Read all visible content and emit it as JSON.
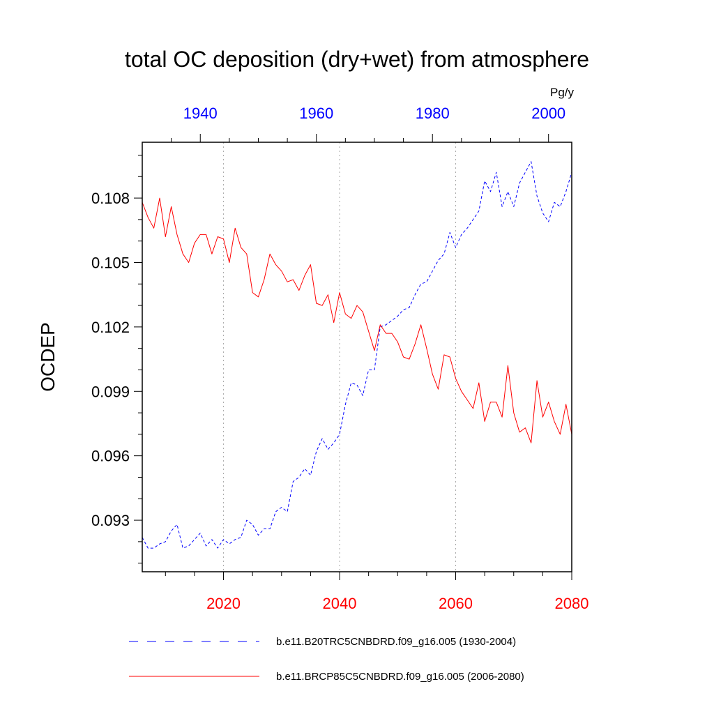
{
  "chart_data": {
    "type": "line",
    "title": "total OC deposition (dry+wet) from atmosphere",
    "ylabel": "OCDEP",
    "units": "Pg/y",
    "ylim": [
      0.0906,
      0.1106
    ],
    "y_ticks": [
      0.093,
      0.096,
      0.099,
      0.102,
      0.105,
      0.108
    ],
    "y_tick_labels": [
      "0.093",
      "0.096",
      "0.099",
      "0.102",
      "0.105",
      "0.108"
    ],
    "top_axis": {
      "range": [
        1930,
        2004
      ],
      "ticks": [
        1940,
        1960,
        1980,
        2000
      ],
      "color": "#0000ff"
    },
    "bottom_axis": {
      "range": [
        2006,
        2080
      ],
      "ticks": [
        2020,
        2040,
        2060,
        2080
      ],
      "color": "#ff0000"
    },
    "grid": "vertical dotted at bottom-axis ticks",
    "series": [
      {
        "name": "b.e11.B20TRC5CNBDRD.f09_g16.005 (1930-2004)",
        "axis": "top",
        "color": "#0000ff",
        "style": "dashed",
        "x_start": 1930,
        "values": [
          0.0922,
          0.0917,
          0.0917,
          0.0919,
          0.092,
          0.0925,
          0.0928,
          0.0917,
          0.0918,
          0.0921,
          0.0924,
          0.0918,
          0.0921,
          0.0917,
          0.0921,
          0.0919,
          0.0921,
          0.0922,
          0.093,
          0.0928,
          0.0923,
          0.0926,
          0.0926,
          0.0934,
          0.0936,
          0.0934,
          0.0948,
          0.095,
          0.0954,
          0.0951,
          0.0962,
          0.0968,
          0.0963,
          0.0966,
          0.097,
          0.0984,
          0.0994,
          0.0993,
          0.0988,
          0.1,
          0.1,
          0.102,
          0.1021,
          0.1023,
          0.1025,
          0.1028,
          0.1029,
          0.1035,
          0.104,
          0.1041,
          0.1046,
          0.1051,
          0.1054,
          0.1064,
          0.1057,
          0.1063,
          0.1066,
          0.107,
          0.1074,
          0.1088,
          0.1083,
          0.1092,
          0.1076,
          0.1083,
          0.1076,
          0.1087,
          0.1092,
          0.1097,
          0.1081,
          0.1073,
          0.1069,
          0.1078,
          0.1076,
          0.1083,
          0.1092
        ]
      },
      {
        "name": "b.e11.BRCP85C5CNBDRD.f09_g16.005 (2006-2080)",
        "axis": "bottom",
        "color": "#ff0000",
        "style": "solid",
        "x_start": 2006,
        "values": [
          0.1078,
          0.1071,
          0.1066,
          0.108,
          0.1062,
          0.1076,
          0.1063,
          0.1054,
          0.105,
          0.1059,
          0.1063,
          0.1063,
          0.1054,
          0.1062,
          0.1061,
          0.105,
          0.1066,
          0.1057,
          0.1054,
          0.1036,
          0.1034,
          0.1042,
          0.1054,
          0.1049,
          0.1046,
          0.1041,
          0.1042,
          0.1037,
          0.1044,
          0.1049,
          0.1031,
          0.103,
          0.1035,
          0.1022,
          0.1036,
          0.1026,
          0.1024,
          0.103,
          0.1027,
          0.1018,
          0.1009,
          0.1021,
          0.1017,
          0.1017,
          0.1013,
          0.1006,
          0.1005,
          0.1012,
          0.1021,
          0.101,
          0.0998,
          0.0991,
          0.1007,
          0.1006,
          0.0996,
          0.099,
          0.0986,
          0.0982,
          0.0994,
          0.0976,
          0.0985,
          0.0985,
          0.0978,
          0.1002,
          0.098,
          0.0971,
          0.0973,
          0.0966,
          0.0995,
          0.0978,
          0.0985,
          0.0976,
          0.097,
          0.0984,
          0.097
        ]
      }
    ],
    "legend_position": "bottom"
  }
}
